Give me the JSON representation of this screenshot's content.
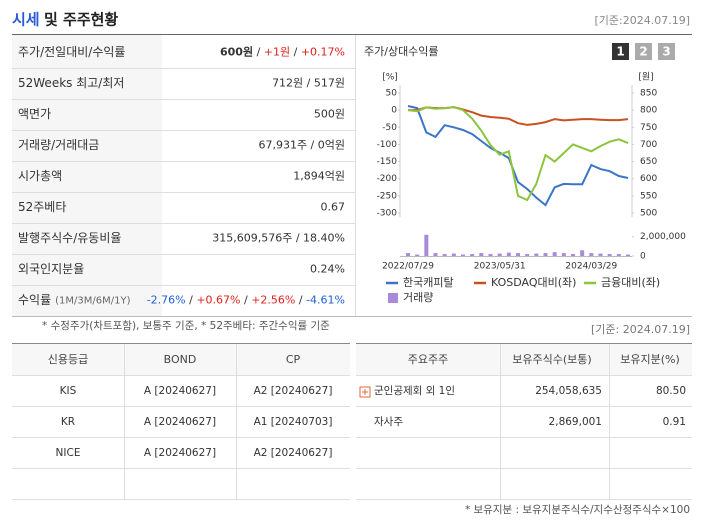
{
  "header": {
    "title_highlight": "시세",
    "title_rest": "및 주주현황",
    "date": "[기준:2024.07.19]"
  },
  "price_table": {
    "rows": [
      {
        "label": "주가/전일대비/수익률",
        "parts": [
          {
            "text": "600원",
            "bold": true
          },
          {
            "text": " / "
          },
          {
            "text": "+1원",
            "color": "#e0201b"
          },
          {
            "text": " / "
          },
          {
            "text": "+0.17%",
            "color": "#e0201b"
          }
        ]
      },
      {
        "label": "52Weeks 최고/최저",
        "parts": [
          {
            "text": "712원 / 517원"
          }
        ]
      },
      {
        "label": "액면가",
        "parts": [
          {
            "text": "500원"
          }
        ]
      },
      {
        "label": "거래량/거래대금",
        "parts": [
          {
            "text": "67,931주 / 0억원"
          }
        ]
      },
      {
        "label": "시가총액",
        "parts": [
          {
            "text": "1,894억원"
          }
        ]
      },
      {
        "label": "52주베타",
        "parts": [
          {
            "text": "0.67"
          }
        ]
      },
      {
        "label": "발행주식수/유동비율",
        "parts": [
          {
            "text": "315,609,576주 / 18.40%"
          }
        ]
      },
      {
        "label": "외국인지분율",
        "parts": [
          {
            "text": "0.24%"
          }
        ]
      },
      {
        "label": "수익률",
        "label_note": "(1M/3M/6M/1Y)",
        "parts": [
          {
            "text": "-2.76%",
            "color": "#1f5fd0"
          },
          {
            "text": " / "
          },
          {
            "text": "+0.67%",
            "color": "#e0201b"
          },
          {
            "text": " / "
          },
          {
            "text": "+2.56%",
            "color": "#e0201b"
          },
          {
            "text": " / "
          },
          {
            "text": "-4.61%",
            "color": "#1f5fd0"
          }
        ]
      }
    ],
    "footnote": "* 수정주가(차트포함), 보통주 기준, * 52주베타: 주간수익률 기준"
  },
  "chart_data": {
    "type": "line",
    "title": "주가/상대수익률",
    "tabs": [
      "1",
      "2",
      "3"
    ],
    "ylabel": "[%]",
    "y2label": "[원]",
    "categories": [
      "2022/07/29",
      null,
      null,
      null,
      null,
      null,
      null,
      null,
      null,
      null,
      "2023/05/31",
      null,
      null,
      null,
      null,
      null,
      null,
      null,
      null,
      null,
      "2024/03/29",
      null,
      null,
      null,
      null
    ],
    "ylim": [
      -300,
      50
    ],
    "yticks": [
      50,
      0,
      -50,
      -100,
      -150,
      -200,
      -250,
      -300
    ],
    "y2lim": [
      500,
      850
    ],
    "y2ticks": [
      850,
      800,
      750,
      700,
      650,
      600,
      550,
      500
    ],
    "y3lim": [
      0,
      2800000
    ],
    "y3ticks": [
      {
        "value": 2000000,
        "label": "2,000,000"
      },
      0
    ],
    "series": [
      {
        "name": "한국캐피탈",
        "color": "#3b74c8",
        "axis": "y2",
        "values": [
          812,
          806,
          735,
          722,
          756,
          750,
          742,
          730,
          710,
          690,
          676,
          660,
          590,
          570,
          545,
          523,
          575,
          585,
          584,
          584,
          640,
          628,
          622,
          608,
          602
        ]
      },
      {
        "name": "KOSDAQ대비(좌)",
        "color": "#c9521f",
        "values": [
          0,
          0,
          8,
          6,
          6,
          9,
          2,
          -6,
          -16,
          -20,
          -22,
          -25,
          -38,
          -43,
          -40,
          -35,
          -26,
          -30,
          -28,
          -26,
          -26,
          -28,
          -29,
          -29,
          -26
        ]
      },
      {
        "name": "금융대비(좌)",
        "color": "#8cc43c",
        "values": [
          0,
          -3,
          8,
          4,
          6,
          9,
          0,
          -25,
          -60,
          -102,
          -130,
          -120,
          -250,
          -262,
          -215,
          -131,
          -150,
          -125,
          -100,
          -110,
          -120,
          -105,
          -92,
          -85,
          -96
        ]
      },
      {
        "name": "거래량",
        "type": "bar",
        "axis": "y3",
        "color": "#a88ad8",
        "values": [
          300000,
          150000,
          2200000,
          300000,
          200000,
          250000,
          150000,
          200000,
          300000,
          200000,
          250000,
          350000,
          300000,
          200000,
          250000,
          300000,
          400000,
          300000,
          200000,
          600000,
          300000,
          250000,
          200000,
          200000,
          150000
        ]
      }
    ]
  },
  "ratings": {
    "date": "[기준: 2024.07.19]",
    "credit_table": {
      "headers": [
        "신용등급",
        "BOND",
        "CP"
      ],
      "rows": [
        [
          "KIS",
          "A [20240627]",
          "A2 [20240627]"
        ],
        [
          "KR",
          "A [20240627]",
          "A1 [20240703]"
        ],
        [
          "NICE",
          "A [20240627]",
          "A2 [20240627]"
        ]
      ]
    },
    "shareholder_table": {
      "headers": [
        "주요주주",
        "보유주식수(보통)",
        "보유지분(%)"
      ],
      "rows": [
        [
          "군인공제회 외 1인",
          "254,058,635",
          "80.50"
        ],
        [
          "자사주",
          "2,869,001",
          "0.91"
        ]
      ]
    },
    "footnote": "* 보유지분 : 보유지분주식수/지수산정주식수×100"
  }
}
